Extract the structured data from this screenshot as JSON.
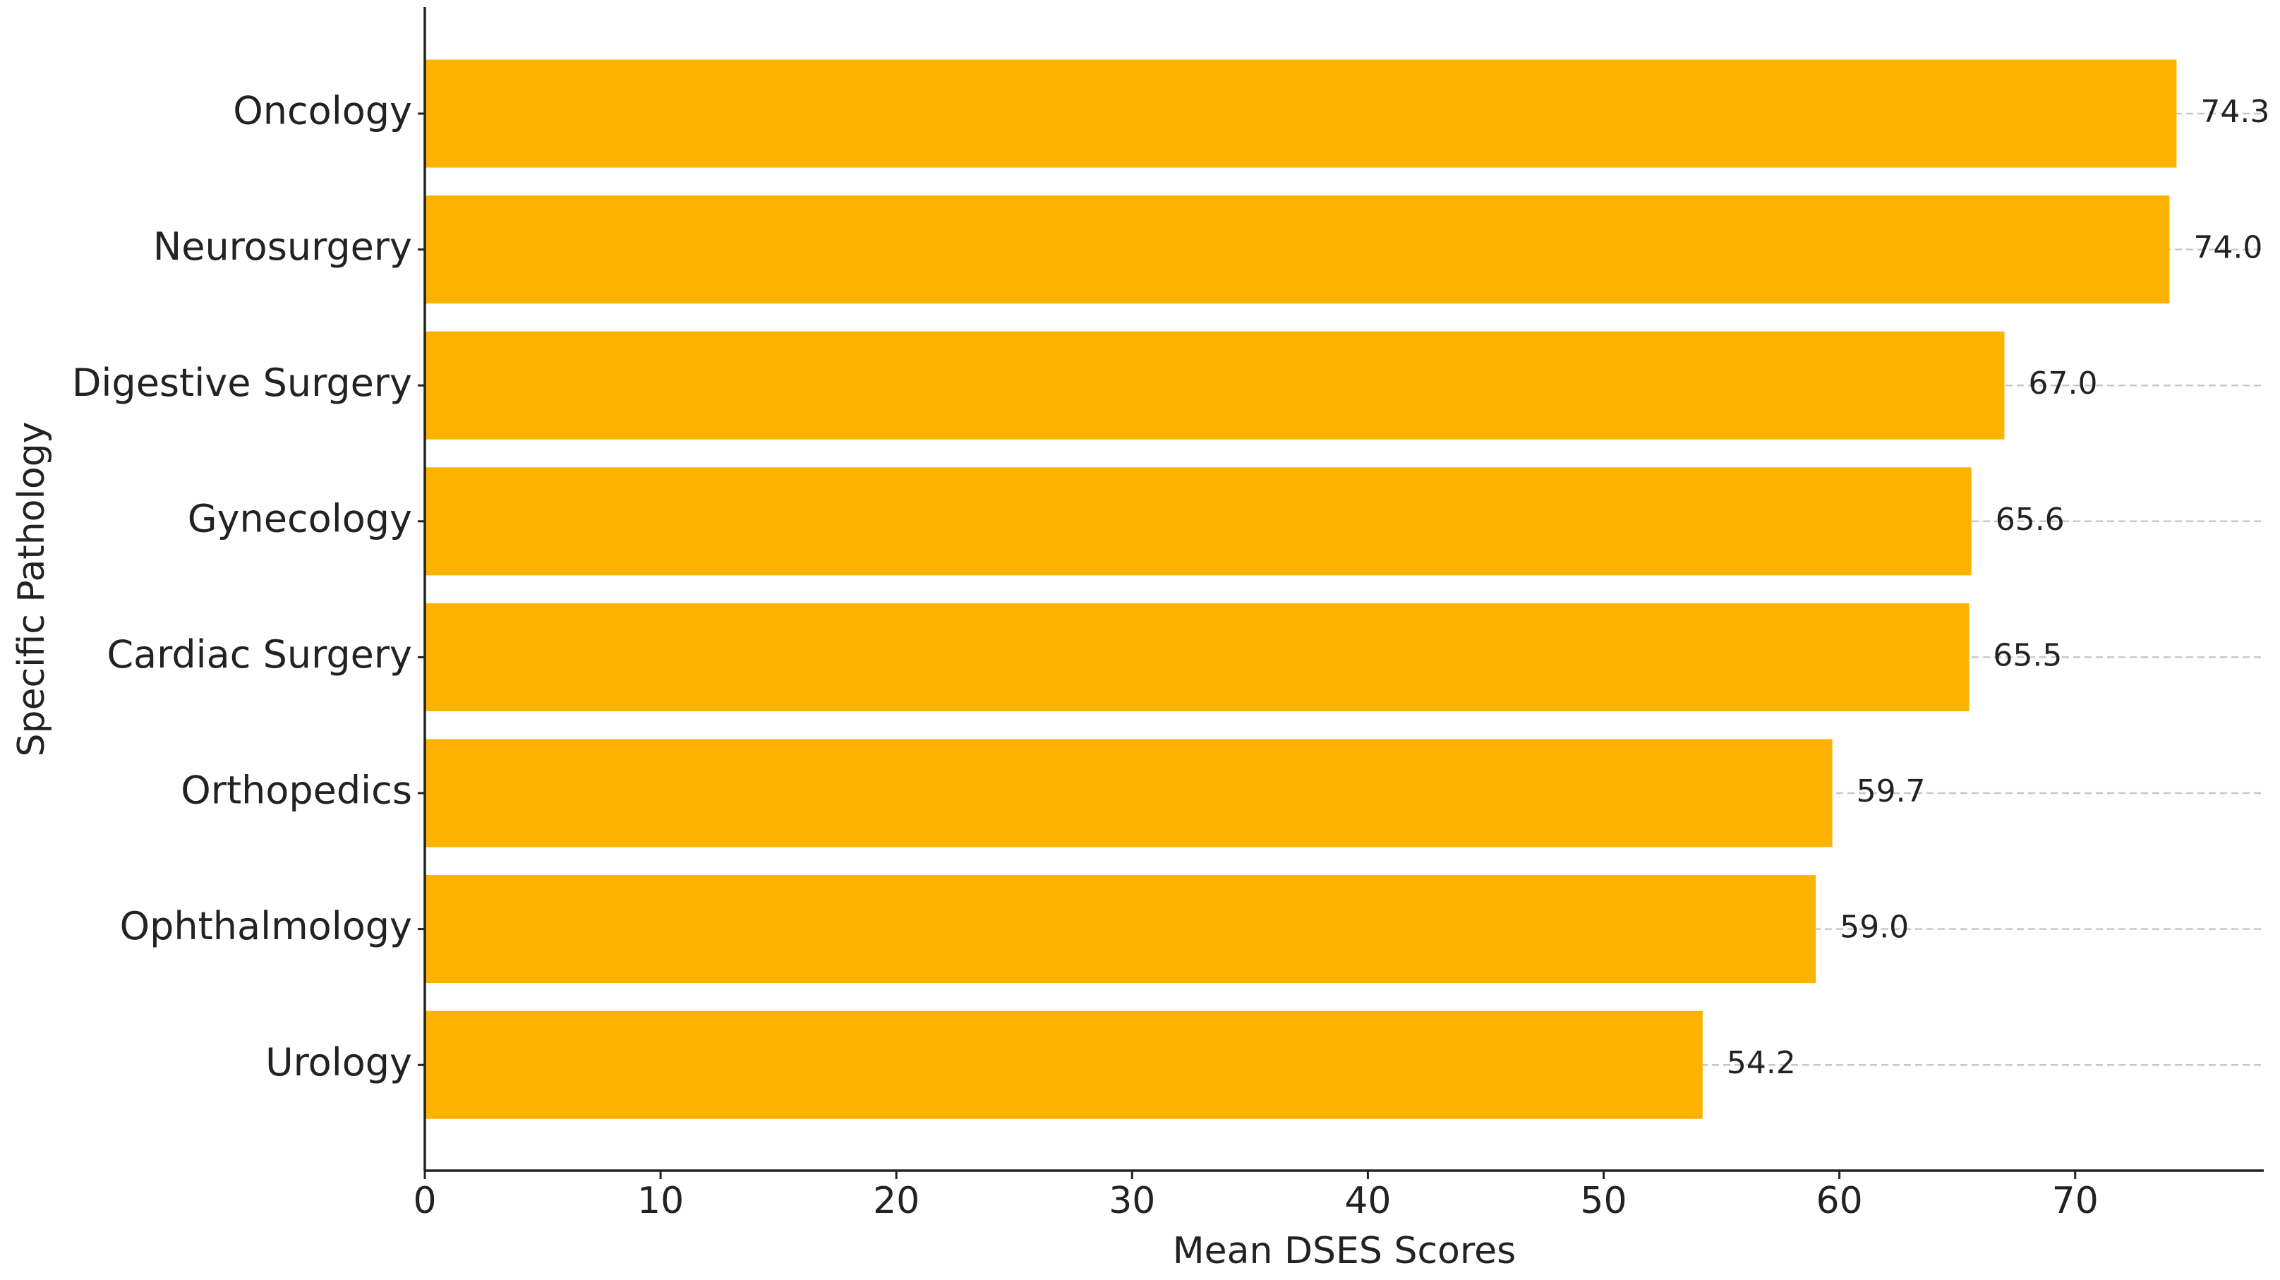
{
  "chart_data": {
    "type": "barh",
    "categories": [
      "Oncology",
      "Neurosurgery",
      "Digestive Surgery",
      "Gynecology",
      "Cardiac Surgery",
      "Orthopedics",
      "Ophthalmology",
      "Urology"
    ],
    "values": [
      74.3,
      74.0,
      67.0,
      65.6,
      65.5,
      59.7,
      59.0,
      54.2
    ],
    "value_labels": [
      "74.3",
      "74.0",
      "67.0",
      "65.6",
      "65.5",
      "59.7",
      "59.0",
      "54.2"
    ],
    "color": "#FDB100",
    "xlabel": "Mean DSES Scores",
    "ylabel": "Specific Pathology",
    "xlim": [
      0,
      78
    ],
    "xticks": [
      0,
      10,
      20,
      30,
      40,
      50,
      60,
      70
    ],
    "grid": true
  }
}
